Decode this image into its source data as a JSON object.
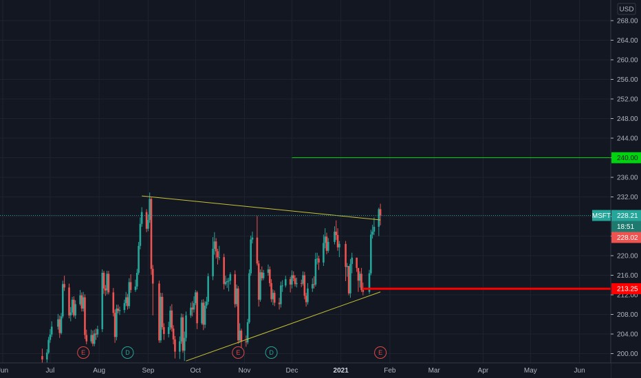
{
  "currency": "USD",
  "chart_data": {
    "type": "candlestick",
    "symbol": "MSFT",
    "y_range": [
      198,
      270
    ],
    "y_ticks": [
      "200.00",
      "204.00",
      "208.00",
      "212.00",
      "216.00",
      "220.00",
      "224.00",
      "228.00",
      "232.00",
      "236.00",
      "240.00",
      "244.00",
      "248.00",
      "252.00",
      "256.00",
      "260.00",
      "264.00",
      "268.00"
    ],
    "x_ticks": [
      {
        "label": "Jun"
      },
      {
        "label": "Jul"
      },
      {
        "label": "Aug"
      },
      {
        "label": "Sep"
      },
      {
        "label": "Oct"
      },
      {
        "label": "Nov"
      },
      {
        "label": "Dec"
      },
      {
        "label": "2021",
        "bold": true
      },
      {
        "label": "Feb"
      },
      {
        "label": "Mar"
      },
      {
        "label": "Apr"
      },
      {
        "label": "May"
      },
      {
        "label": "Jun"
      }
    ],
    "last_price": "228.21",
    "countdown": "18:51",
    "prev_close": "228.02",
    "target_level": {
      "value": 240.0,
      "label": "240.00",
      "color": "#00d40e"
    },
    "support_level": {
      "value": 213.25,
      "label": "213.25",
      "color": "#ff0000"
    },
    "trendlines": [
      {
        "name": "upper-resistance",
        "from": {
          "date": "2020-08-28",
          "price": 232.2
        },
        "to": {
          "date": "2021-01-26",
          "price": 227.3
        },
        "color": "#c9c337"
      },
      {
        "name": "lower-support",
        "from": {
          "date": "2020-09-25",
          "price": 198.5
        },
        "to": {
          "date": "2021-01-26",
          "price": 212.6
        },
        "color": "#c9c337"
      }
    ],
    "events": [
      {
        "label": "E",
        "date": "2020-07-22",
        "kind": "earnings",
        "color": "#e0494a"
      },
      {
        "label": "D",
        "date": "2020-08-19",
        "kind": "dividend",
        "color": "#26a69a"
      },
      {
        "label": "E",
        "date": "2020-10-28",
        "kind": "earnings",
        "color": "#e0494a"
      },
      {
        "label": "D",
        "date": "2020-11-18",
        "kind": "dividend",
        "color": "#26a69a"
      },
      {
        "label": "E",
        "date": "2021-01-26",
        "kind": "earnings",
        "color": "#e0494a"
      }
    ],
    "colors": {
      "up": "#26a69a",
      "down": "#ef5350"
    },
    "candles": [
      [
        "2020-06-26",
        199.5,
        198.8,
        201.0,
        197.8
      ],
      [
        "2020-06-29",
        198.8,
        200.2,
        200.9,
        197.9
      ],
      [
        "2020-06-30",
        200.2,
        202.8,
        203.4,
        199.9
      ],
      [
        "2020-07-01",
        202.8,
        203.9,
        205.0,
        202.2
      ],
      [
        "2020-07-02",
        203.9,
        205.5,
        206.6,
        203.4
      ],
      [
        "2020-07-06",
        205.5,
        207.0,
        208.1,
        204.9
      ],
      [
        "2020-07-07",
        207.0,
        204.2,
        207.8,
        203.2
      ],
      [
        "2020-07-08",
        204.2,
        207.6,
        208.3,
        203.9
      ],
      [
        "2020-07-09",
        207.6,
        214.2,
        214.9,
        207.2
      ],
      [
        "2020-07-10",
        214.2,
        213.5,
        215.9,
        212.8
      ],
      [
        "2020-07-13",
        213.5,
        207.8,
        214.3,
        207.2
      ],
      [
        "2020-07-14",
        207.8,
        208.4,
        209.5,
        206.6
      ],
      [
        "2020-07-15",
        208.4,
        211.0,
        211.6,
        207.9
      ],
      [
        "2020-07-16",
        211.0,
        207.8,
        211.7,
        207.4
      ],
      [
        "2020-07-17",
        207.8,
        210.1,
        210.9,
        207.1
      ],
      [
        "2020-07-20",
        210.1,
        211.9,
        213.0,
        209.8
      ],
      [
        "2020-07-21",
        211.9,
        209.2,
        212.5,
        208.6
      ],
      [
        "2020-07-22",
        209.2,
        211.5,
        212.6,
        208.6
      ],
      [
        "2020-07-23",
        211.5,
        203.8,
        212.1,
        203.0
      ],
      [
        "2020-07-24",
        203.8,
        202.5,
        204.9,
        201.9
      ],
      [
        "2020-07-27",
        202.5,
        203.8,
        204.9,
        202.1
      ],
      [
        "2020-07-28",
        203.8,
        202.0,
        204.7,
        201.5
      ],
      [
        "2020-07-29",
        202.0,
        204.1,
        204.9,
        201.5
      ],
      [
        "2020-07-30",
        204.1,
        203.9,
        205.1,
        202.8
      ],
      [
        "2020-07-31",
        203.9,
        205.0,
        205.7,
        203.3
      ],
      [
        "2020-08-03",
        205.0,
        216.5,
        217.2,
        204.4
      ],
      [
        "2020-08-04",
        216.5,
        213.3,
        216.9,
        212.2
      ],
      [
        "2020-08-05",
        213.3,
        212.9,
        214.0,
        211.8
      ],
      [
        "2020-08-06",
        212.9,
        216.3,
        216.9,
        212.1
      ],
      [
        "2020-08-07",
        216.3,
        212.5,
        216.9,
        212.1
      ],
      [
        "2020-08-10",
        212.5,
        208.3,
        213.4,
        207.6
      ],
      [
        "2020-08-11",
        208.3,
        203.4,
        209.0,
        202.2
      ],
      [
        "2020-08-12",
        203.4,
        209.2,
        210.0,
        202.7
      ],
      [
        "2020-08-13",
        209.2,
        208.7,
        210.0,
        208.2
      ],
      [
        "2020-08-14",
        208.7,
        208.9,
        209.6,
        207.9
      ],
      [
        "2020-08-17",
        208.9,
        210.3,
        211.0,
        208.3
      ],
      [
        "2020-08-18",
        210.3,
        211.5,
        212.6,
        209.7
      ],
      [
        "2020-08-19",
        211.5,
        209.7,
        212.2,
        209.0
      ],
      [
        "2020-08-20",
        209.7,
        214.6,
        215.4,
        209.2
      ],
      [
        "2020-08-21",
        214.6,
        213.0,
        216.2,
        212.4
      ],
      [
        "2020-08-24",
        213.0,
        213.7,
        215.1,
        212.6
      ],
      [
        "2020-08-25",
        213.7,
        216.5,
        217.3,
        213.1
      ],
      [
        "2020-08-26",
        216.5,
        222.0,
        222.8,
        216.1
      ],
      [
        "2020-08-27",
        222.0,
        226.5,
        227.8,
        221.3
      ],
      [
        "2020-08-28",
        226.5,
        228.9,
        229.9,
        225.9
      ],
      [
        "2020-08-31",
        228.9,
        225.5,
        229.5,
        224.8
      ],
      [
        "2020-09-01",
        225.5,
        227.3,
        228.4,
        225.0
      ],
      [
        "2020-09-02",
        227.3,
        231.6,
        232.9,
        226.7
      ],
      [
        "2020-09-03",
        231.6,
        217.3,
        231.9,
        216.1
      ],
      [
        "2020-09-04",
        217.3,
        214.3,
        218.1,
        207.8
      ],
      [
        "2020-09-08",
        214.3,
        202.7,
        214.9,
        202.2
      ],
      [
        "2020-09-09",
        202.7,
        211.6,
        212.4,
        202.2
      ],
      [
        "2020-09-10",
        211.6,
        205.4,
        212.4,
        204.9
      ],
      [
        "2020-09-11",
        205.4,
        204.0,
        206.2,
        202.8
      ],
      [
        "2020-09-14",
        204.0,
        205.4,
        206.5,
        203.3
      ],
      [
        "2020-09-15",
        205.4,
        208.8,
        209.7,
        204.8
      ],
      [
        "2020-09-16",
        208.8,
        205.1,
        210.1,
        204.5
      ],
      [
        "2020-09-17",
        205.1,
        202.9,
        205.8,
        201.9
      ],
      [
        "2020-09-18",
        202.9,
        200.4,
        203.6,
        199.0
      ],
      [
        "2020-09-21",
        200.4,
        202.5,
        203.5,
        198.9
      ],
      [
        "2020-09-22",
        202.5,
        207.4,
        208.2,
        202.0
      ],
      [
        "2020-09-23",
        207.4,
        200.6,
        208.1,
        200.2
      ],
      [
        "2020-09-24",
        200.6,
        203.2,
        204.5,
        198.5
      ],
      [
        "2020-09-25",
        203.2,
        207.8,
        208.6,
        202.5
      ],
      [
        "2020-09-28",
        207.8,
        209.4,
        210.4,
        207.3
      ],
      [
        "2020-09-29",
        209.4,
        209.0,
        210.7,
        207.6
      ],
      [
        "2020-09-30",
        209.0,
        210.3,
        211.7,
        208.4
      ],
      [
        "2020-10-01",
        210.3,
        212.5,
        213.0,
        209.9
      ],
      [
        "2020-10-02",
        212.5,
        206.2,
        212.8,
        205.0
      ],
      [
        "2020-10-05",
        206.2,
        210.4,
        211.0,
        205.9
      ],
      [
        "2020-10-06",
        210.4,
        205.9,
        211.1,
        204.8
      ],
      [
        "2020-10-07",
        205.9,
        209.8,
        210.7,
        205.2
      ],
      [
        "2020-10-08",
        209.8,
        210.6,
        211.6,
        209.2
      ],
      [
        "2020-10-09",
        210.6,
        215.8,
        216.4,
        210.0
      ],
      [
        "2020-10-12",
        215.8,
        221.4,
        223.8,
        215.0
      ],
      [
        "2020-10-13",
        221.4,
        222.9,
        224.8,
        220.2
      ],
      [
        "2020-10-14",
        222.9,
        220.9,
        223.6,
        219.4
      ],
      [
        "2020-10-15",
        220.9,
        219.7,
        221.4,
        218.2
      ],
      [
        "2020-10-16",
        219.7,
        219.7,
        222.0,
        219.1
      ],
      [
        "2020-10-19",
        219.7,
        214.2,
        220.4,
        213.1
      ],
      [
        "2020-10-20",
        214.2,
        214.6,
        215.9,
        213.9
      ],
      [
        "2020-10-21",
        214.6,
        214.8,
        215.4,
        213.4
      ],
      [
        "2020-10-22",
        214.8,
        214.9,
        215.5,
        212.7
      ],
      [
        "2020-10-23",
        214.9,
        216.2,
        216.6,
        214.1
      ],
      [
        "2020-10-26",
        216.2,
        210.1,
        217.0,
        209.4
      ],
      [
        "2020-10-27",
        210.1,
        213.3,
        214.1,
        209.6
      ],
      [
        "2020-10-28",
        213.3,
        202.7,
        213.8,
        202.0
      ],
      [
        "2020-10-29",
        202.7,
        204.7,
        206.2,
        202.2
      ],
      [
        "2020-10-30",
        204.7,
        202.5,
        205.1,
        199.6
      ],
      [
        "2020-11-02",
        202.5,
        202.3,
        203.7,
        201.4
      ],
      [
        "2020-11-03",
        202.3,
        206.4,
        207.1,
        201.9
      ],
      [
        "2020-11-04",
        206.4,
        216.4,
        217.2,
        206.1
      ],
      [
        "2020-11-05",
        216.4,
        223.3,
        224.1,
        215.9
      ],
      [
        "2020-11-06",
        223.3,
        223.7,
        224.9,
        222.5
      ],
      [
        "2020-11-09",
        223.7,
        218.4,
        228.1,
        218.0
      ],
      [
        "2020-11-10",
        218.4,
        211.0,
        219.0,
        209.6
      ],
      [
        "2020-11-11",
        211.0,
        216.6,
        217.2,
        210.6
      ],
      [
        "2020-11-12",
        216.6,
        215.4,
        217.8,
        214.9
      ],
      [
        "2020-11-13",
        215.4,
        216.5,
        217.1,
        215.0
      ],
      [
        "2020-11-16",
        216.5,
        217.2,
        218.2,
        215.9
      ],
      [
        "2020-11-17",
        217.2,
        214.4,
        217.8,
        213.7
      ],
      [
        "2020-11-18",
        214.4,
        211.1,
        215.2,
        210.5
      ],
      [
        "2020-11-19",
        211.1,
        212.4,
        213.1,
        209.9
      ],
      [
        "2020-11-20",
        212.4,
        210.4,
        212.9,
        209.7
      ],
      [
        "2020-11-23",
        210.4,
        210.1,
        211.4,
        209.0
      ],
      [
        "2020-11-24",
        210.1,
        213.9,
        214.7,
        209.4
      ],
      [
        "2020-11-25",
        213.9,
        213.9,
        215.0,
        212.6
      ],
      [
        "2020-11-27",
        213.9,
        215.2,
        215.9,
        213.5
      ],
      [
        "2020-11-30",
        215.2,
        214.1,
        215.7,
        212.5
      ],
      [
        "2020-12-01",
        214.1,
        216.0,
        217.0,
        213.3
      ],
      [
        "2020-12-02",
        216.0,
        215.4,
        216.8,
        214.8
      ],
      [
        "2020-12-03",
        215.4,
        214.2,
        216.0,
        213.7
      ],
      [
        "2020-12-04",
        214.2,
        214.4,
        215.5,
        213.5
      ],
      [
        "2020-12-07",
        214.4,
        214.3,
        215.1,
        213.6
      ],
      [
        "2020-12-08",
        214.3,
        216.0,
        216.8,
        213.9
      ],
      [
        "2020-12-09",
        216.0,
        211.8,
        216.7,
        211.1
      ],
      [
        "2020-12-10",
        211.8,
        210.5,
        212.4,
        209.6
      ],
      [
        "2020-12-11",
        210.5,
        213.3,
        214.4,
        210.0
      ],
      [
        "2020-12-14",
        213.3,
        214.2,
        215.4,
        212.6
      ],
      [
        "2020-12-15",
        214.2,
        214.1,
        215.8,
        213.3
      ],
      [
        "2020-12-16",
        214.1,
        219.3,
        220.6,
        213.7
      ],
      [
        "2020-12-17",
        219.3,
        219.4,
        220.6,
        218.2
      ],
      [
        "2020-12-18",
        219.4,
        218.6,
        220.0,
        217.1
      ],
      [
        "2020-12-21",
        218.6,
        222.6,
        224.3,
        217.9
      ],
      [
        "2020-12-22",
        222.6,
        223.9,
        225.6,
        221.5
      ],
      [
        "2020-12-23",
        223.9,
        221.0,
        224.7,
        220.3
      ],
      [
        "2020-12-24",
        221.0,
        222.8,
        223.6,
        220.6
      ],
      [
        "2020-12-28",
        222.8,
        224.9,
        226.0,
        222.3
      ],
      [
        "2020-12-29",
        224.9,
        224.2,
        227.2,
        223.2
      ],
      [
        "2020-12-30",
        224.2,
        221.7,
        225.6,
        221.0
      ],
      [
        "2020-12-31",
        221.7,
        222.4,
        223.0,
        219.7
      ],
      [
        "2021-01-04",
        222.4,
        217.7,
        223.0,
        214.8
      ],
      [
        "2021-01-05",
        217.7,
        217.9,
        218.5,
        215.7
      ],
      [
        "2021-01-06",
        217.9,
        212.3,
        216.5,
        211.9
      ],
      [
        "2021-01-07",
        212.3,
        218.3,
        219.3,
        211.4
      ],
      [
        "2021-01-08",
        218.3,
        219.6,
        220.6,
        216.4
      ],
      [
        "2021-01-11",
        219.6,
        217.5,
        218.9,
        216.7
      ],
      [
        "2021-01-12",
        217.5,
        214.9,
        217.1,
        212.6
      ],
      [
        "2021-01-13",
        214.9,
        216.3,
        216.8,
        213.5
      ],
      [
        "2021-01-14",
        216.3,
        213.0,
        217.5,
        212.6
      ],
      [
        "2021-01-15",
        213.0,
        212.6,
        214.5,
        211.9
      ],
      [
        "2021-01-19",
        212.6,
        216.4,
        217.1,
        212.2
      ],
      [
        "2021-01-20",
        216.4,
        224.3,
        225.3,
        216.0
      ],
      [
        "2021-01-21",
        224.3,
        224.9,
        226.3,
        223.5
      ],
      [
        "2021-01-22",
        224.9,
        225.9,
        227.8,
        224.2
      ],
      [
        "2021-01-25",
        225.9,
        229.5,
        229.8,
        224.0
      ],
      [
        "2021-01-26",
        229.5,
        228.2,
        230.6,
        226.2
      ]
    ]
  }
}
